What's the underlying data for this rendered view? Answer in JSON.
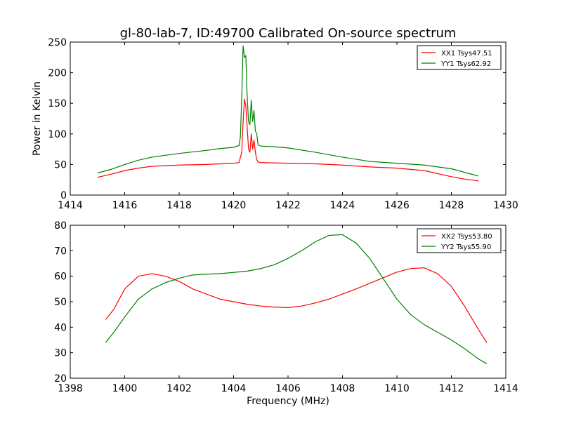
{
  "title": "gl-80-lab-7, ID:49700 Calibrated On-source spectrum",
  "colors": {
    "red": "#ff0000",
    "green": "#008000"
  },
  "chart_data": [
    {
      "type": "line",
      "xlabel": "",
      "ylabel": "Power in Kelvin",
      "xlim": [
        1414,
        1430
      ],
      "ylim": [
        0,
        250
      ],
      "xticks": [
        1414,
        1416,
        1418,
        1420,
        1422,
        1424,
        1426,
        1428,
        1430
      ],
      "yticks": [
        0,
        50,
        100,
        150,
        200,
        250
      ],
      "legend_position": "top-right",
      "series": [
        {
          "name": "XX1 Tsys47.51",
          "color": "#ff0000",
          "points": [
            [
              1415,
              29
            ],
            [
              1415.5,
              34
            ],
            [
              1416,
              40
            ],
            [
              1416.5,
              44
            ],
            [
              1417,
              47
            ],
            [
              1417.5,
              48
            ],
            [
              1418,
              49
            ],
            [
              1419,
              50
            ],
            [
              1419.5,
              51
            ],
            [
              1420,
              52
            ],
            [
              1420.2,
              53
            ],
            [
              1420.3,
              70
            ],
            [
              1420.35,
              120
            ],
            [
              1420.4,
              157
            ],
            [
              1420.45,
              145
            ],
            [
              1420.5,
              110
            ],
            [
              1420.55,
              75
            ],
            [
              1420.6,
              70
            ],
            [
              1420.65,
              100
            ],
            [
              1420.7,
              75
            ],
            [
              1420.75,
              90
            ],
            [
              1420.8,
              70
            ],
            [
              1420.85,
              58
            ],
            [
              1420.9,
              54
            ],
            [
              1421,
              53
            ],
            [
              1422,
              52
            ],
            [
              1423,
              51
            ],
            [
              1424,
              49
            ],
            [
              1425,
              46
            ],
            [
              1426,
              44
            ],
            [
              1427,
              40
            ],
            [
              1428,
              30
            ],
            [
              1428.5,
              26
            ],
            [
              1429,
              23
            ]
          ]
        },
        {
          "name": "YY1 Tsys62.92",
          "color": "#008000",
          "points": [
            [
              1415,
              36
            ],
            [
              1415.5,
              42
            ],
            [
              1416,
              50
            ],
            [
              1416.5,
              57
            ],
            [
              1417,
              62
            ],
            [
              1418,
              68
            ],
            [
              1419,
              73
            ],
            [
              1419.5,
              76
            ],
            [
              1420,
              78
            ],
            [
              1420.2,
              81
            ],
            [
              1420.25,
              95
            ],
            [
              1420.3,
              160
            ],
            [
              1420.35,
              244
            ],
            [
              1420.4,
              225
            ],
            [
              1420.45,
              228
            ],
            [
              1420.5,
              160
            ],
            [
              1420.55,
              120
            ],
            [
              1420.6,
              115
            ],
            [
              1420.65,
              155
            ],
            [
              1420.7,
              120
            ],
            [
              1420.75,
              138
            ],
            [
              1420.8,
              105
            ],
            [
              1420.85,
              100
            ],
            [
              1420.9,
              82
            ],
            [
              1421,
              80
            ],
            [
              1421.5,
              79
            ],
            [
              1422,
              77
            ],
            [
              1423,
              70
            ],
            [
              1424,
              62
            ],
            [
              1425,
              55
            ],
            [
              1426,
              52
            ],
            [
              1427,
              49
            ],
            [
              1428,
              43
            ],
            [
              1428.5,
              37
            ],
            [
              1429,
              31
            ]
          ]
        }
      ]
    },
    {
      "type": "line",
      "xlabel": "Frequency (MHz)",
      "ylabel": "",
      "xlim": [
        1398,
        1414
      ],
      "ylim": [
        20,
        80
      ],
      "xticks": [
        1398,
        1400,
        1402,
        1404,
        1406,
        1408,
        1410,
        1412,
        1414
      ],
      "yticks": [
        20,
        30,
        40,
        50,
        60,
        70,
        80
      ],
      "legend_position": "top-right",
      "series": [
        {
          "name": "XX2 Tsys53.80",
          "color": "#ff0000",
          "points": [
            [
              1399.3,
              43
            ],
            [
              1399.6,
              47
            ],
            [
              1400,
              55
            ],
            [
              1400.5,
              60
            ],
            [
              1401,
              61
            ],
            [
              1401.5,
              60
            ],
            [
              1402,
              58
            ],
            [
              1402.5,
              55
            ],
            [
              1403,
              53
            ],
            [
              1403.5,
              51
            ],
            [
              1404,
              50
            ],
            [
              1404.5,
              49
            ],
            [
              1405,
              48.3
            ],
            [
              1405.5,
              47.9
            ],
            [
              1406,
              47.7
            ],
            [
              1406.5,
              48.3
            ],
            [
              1407,
              49.5
            ],
            [
              1407.5,
              51
            ],
            [
              1408,
              53
            ],
            [
              1408.5,
              55
            ],
            [
              1409,
              57.2
            ],
            [
              1409.5,
              59.4
            ],
            [
              1410,
              61.6
            ],
            [
              1410.5,
              63
            ],
            [
              1411,
              63.3
            ],
            [
              1411.5,
              61
            ],
            [
              1412,
              56
            ],
            [
              1412.5,
              48
            ],
            [
              1413,
              39
            ],
            [
              1413.3,
              34
            ]
          ]
        },
        {
          "name": "YY2 Tsys55.90",
          "color": "#008000",
          "points": [
            [
              1399.3,
              34
            ],
            [
              1399.6,
              38
            ],
            [
              1400,
              44
            ],
            [
              1400.5,
              51
            ],
            [
              1401,
              55
            ],
            [
              1401.5,
              57.5
            ],
            [
              1402,
              59.2
            ],
            [
              1402.5,
              60.5
            ],
            [
              1403,
              60.8
            ],
            [
              1403.5,
              61
            ],
            [
              1404,
              61.5
            ],
            [
              1404.5,
              62
            ],
            [
              1405,
              63
            ],
            [
              1405.5,
              64.5
            ],
            [
              1406,
              67
            ],
            [
              1406.5,
              70
            ],
            [
              1407,
              73.5
            ],
            [
              1407.5,
              76
            ],
            [
              1408,
              76.3
            ],
            [
              1408.5,
              73
            ],
            [
              1409,
              67
            ],
            [
              1409.5,
              59
            ],
            [
              1410,
              51
            ],
            [
              1410.5,
              45
            ],
            [
              1411,
              41
            ],
            [
              1411.5,
              38
            ],
            [
              1412,
              35
            ],
            [
              1412.5,
              31.5
            ],
            [
              1413,
              27.5
            ],
            [
              1413.3,
              25.7
            ]
          ]
        }
      ]
    }
  ]
}
